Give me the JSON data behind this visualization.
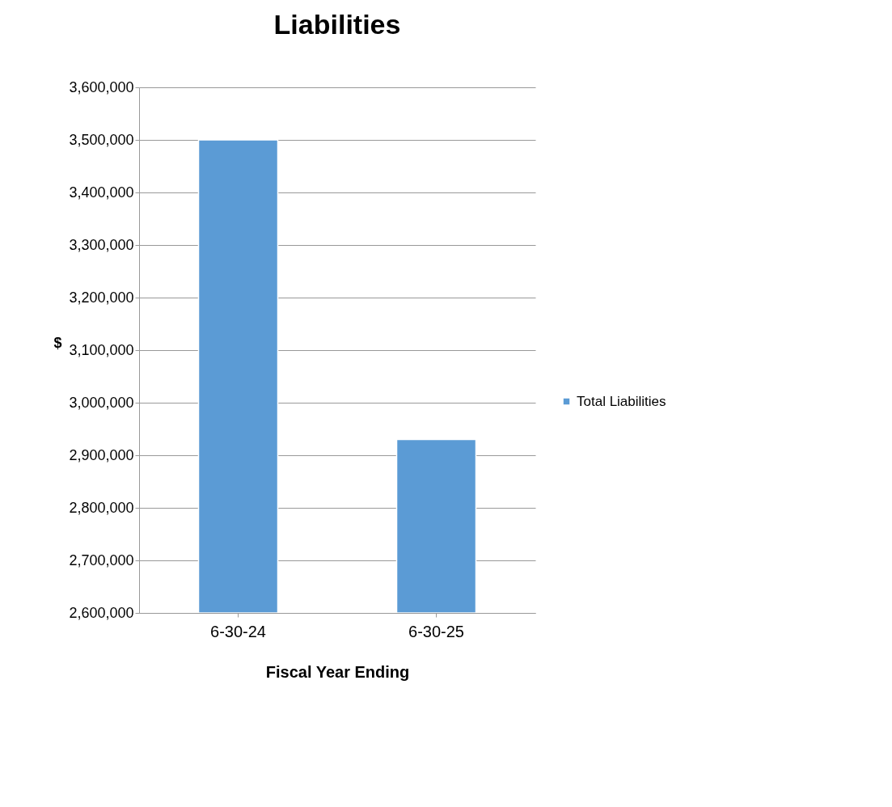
{
  "chart_data": {
    "type": "bar",
    "title": "Liabilities",
    "xlabel": "Fiscal Year Ending",
    "ylabel": "$",
    "categories": [
      "6-30-24",
      "6-30-25"
    ],
    "series": [
      {
        "name": "Total Liabilities",
        "color": "#5b9bd5",
        "values": [
          3500000,
          2930000
        ]
      }
    ],
    "ylim": [
      2600000,
      3600000
    ],
    "yticks": [
      {
        "value": 2600000,
        "label": "2,600,000"
      },
      {
        "value": 2700000,
        "label": "2,700,000"
      },
      {
        "value": 2800000,
        "label": "2,800,000"
      },
      {
        "value": 2900000,
        "label": "2,900,000"
      },
      {
        "value": 3000000,
        "label": "3,000,000"
      },
      {
        "value": 3100000,
        "label": "3,100,000"
      },
      {
        "value": 3200000,
        "label": "3,200,000"
      },
      {
        "value": 3300000,
        "label": "3,300,000"
      },
      {
        "value": 3400000,
        "label": "3,400,000"
      },
      {
        "value": 3500000,
        "label": "3,500,000"
      },
      {
        "value": 3600000,
        "label": "3,600,000"
      }
    ],
    "grid": "y",
    "legend": "right"
  }
}
